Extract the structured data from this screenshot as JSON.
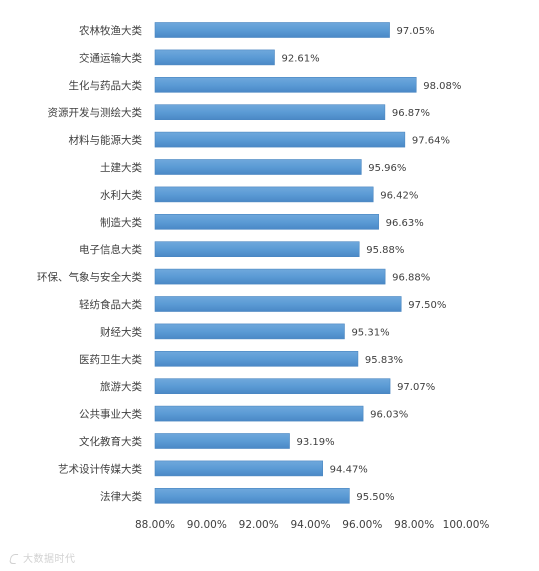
{
  "chart_data": {
    "type": "bar",
    "orientation": "horizontal",
    "categories": [
      "农林牧渔大类",
      "交通运输大类",
      "生化与药品大类",
      "资源开发与测绘大类",
      "材料与能源大类",
      "土建大类",
      "水利大类",
      "制造大类",
      "电子信息大类",
      "环保、气象与安全大类",
      "轻纺食品大类",
      "财经大类",
      "医药卫生大类",
      "旅游大类",
      "公共事业大类",
      "文化教育大类",
      "艺术设计传媒大类",
      "法律大类"
    ],
    "values": [
      97.05,
      92.61,
      98.08,
      96.87,
      97.64,
      95.96,
      96.42,
      96.63,
      95.88,
      96.88,
      97.5,
      95.31,
      95.83,
      97.07,
      96.03,
      93.19,
      94.47,
      95.5
    ],
    "value_labels": [
      "97.05%",
      "92.61%",
      "98.08%",
      "96.87%",
      "97.64%",
      "95.96%",
      "96.42%",
      "96.63%",
      "95.88%",
      "96.88%",
      "97.50%",
      "95.31%",
      "95.83%",
      "97.07%",
      "96.03%",
      "93.19%",
      "94.47%",
      "95.50%"
    ],
    "xlim": [
      88,
      100
    ],
    "xticks": [
      88,
      90,
      92,
      94,
      96,
      98,
      100
    ],
    "xtick_labels": [
      "88.00%",
      "90.00%",
      "92.00%",
      "94.00%",
      "96.00%",
      "98.00%",
      "100.00%"
    ],
    "title": "",
    "xlabel": "",
    "ylabel": "",
    "grid": false,
    "legend": "none",
    "bar_color": "#5b9bd5",
    "bar_edge_color": "#4a86c0"
  },
  "watermark": {
    "text": "大数据时代"
  }
}
